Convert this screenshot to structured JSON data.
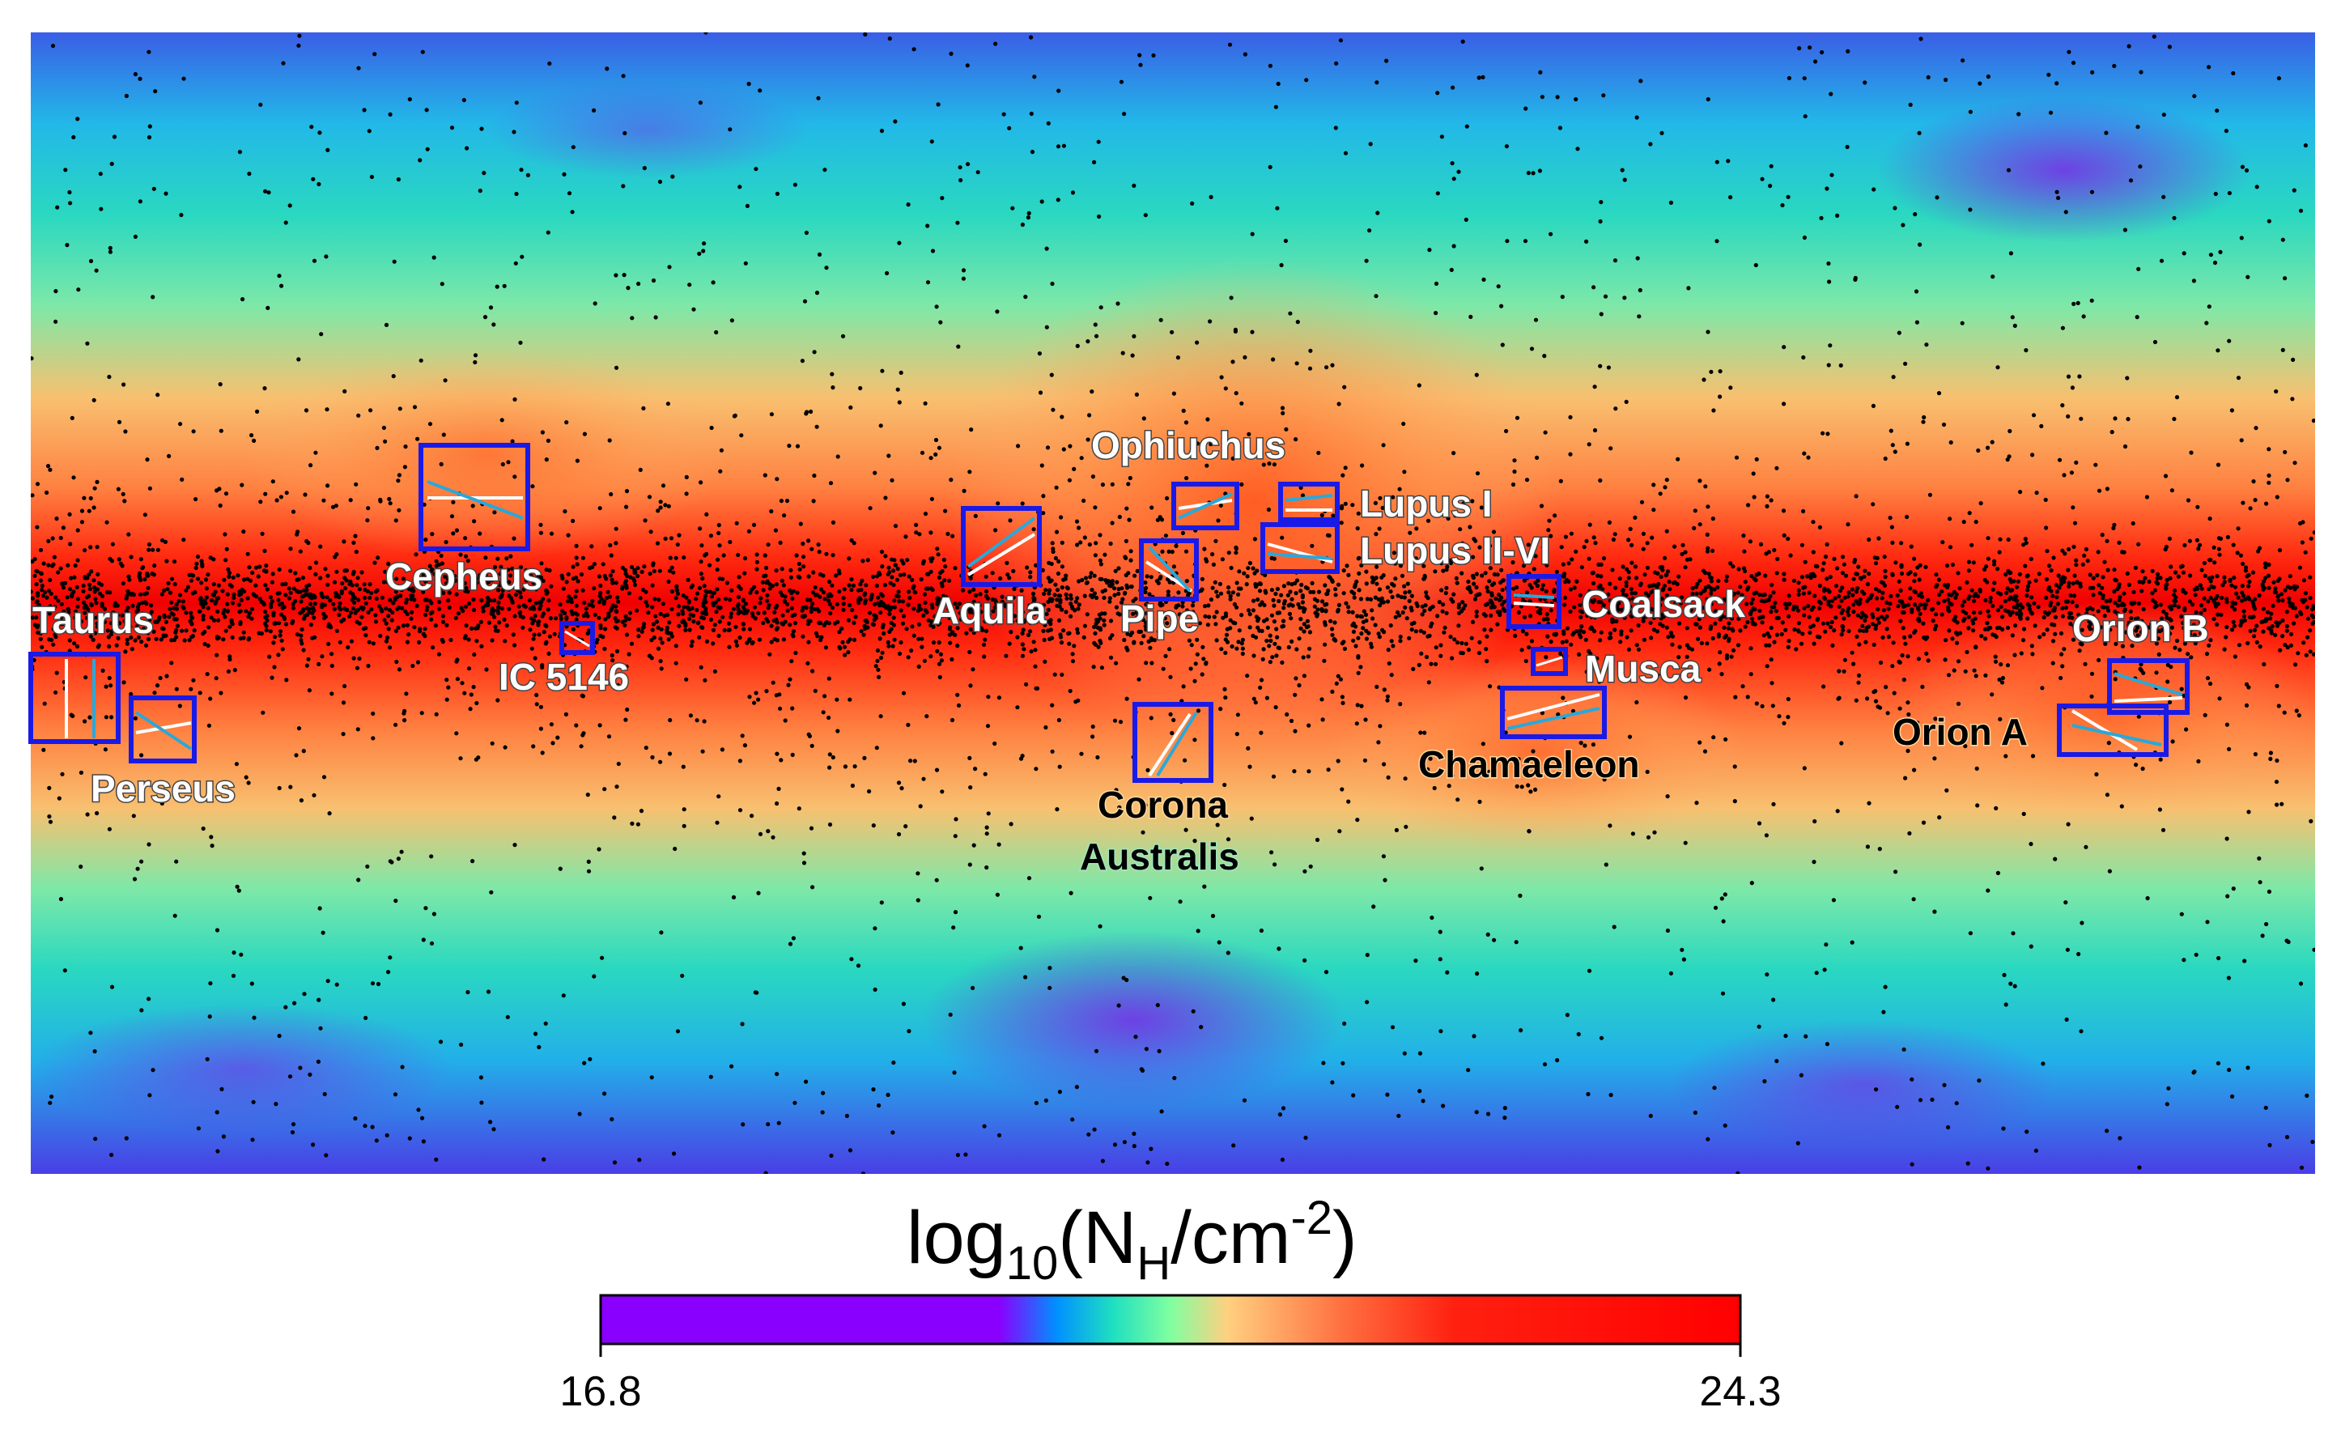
{
  "colorbar": {
    "title_prefix": "log",
    "title_base": "10",
    "title_paren_open": "(N",
    "title_sub": "H",
    "title_unit": "/cm",
    "title_sup": "-2",
    "title_paren_close": ")",
    "min_label": "16.8",
    "max_label": "24.3",
    "range": [
      16.8,
      24.3
    ]
  },
  "regions": [
    {
      "key": "taurus",
      "label": "Taurus",
      "color": "#ffffff"
    },
    {
      "key": "perseus",
      "label": "Perseus",
      "color": "#ffffff"
    },
    {
      "key": "cepheus",
      "label": "Cepheus",
      "color": "#ffffff"
    },
    {
      "key": "ic5146",
      "label": "IC 5146",
      "color": "#ffffff"
    },
    {
      "key": "aquila",
      "label": "Aquila",
      "color": "#ffffff"
    },
    {
      "key": "pipe",
      "label": "Pipe",
      "color": "#ffffff"
    },
    {
      "key": "ophiuchus",
      "label": "Ophiuchus",
      "color": "#ffffff"
    },
    {
      "key": "lupus-i",
      "label": "Lupus I",
      "color": "#ffffff"
    },
    {
      "key": "lupus-ii-vi",
      "label": "Lupus II-VI",
      "color": "#ffffff"
    },
    {
      "key": "coalsack",
      "label": "Coalsack",
      "color": "#ffffff"
    },
    {
      "key": "musca",
      "label": "Musca",
      "color": "#ffffff"
    },
    {
      "key": "chamaeleon",
      "label": "Chamaeleon",
      "color": "#000000"
    },
    {
      "key": "corona-australis-1",
      "label": "Corona",
      "color": "#000000"
    },
    {
      "key": "corona-australis-2",
      "label": "Australis",
      "color": "#000000"
    },
    {
      "key": "orion-b",
      "label": "Orion B",
      "color": "#ffffff"
    },
    {
      "key": "orion-a",
      "label": "Orion A",
      "color": "#000000"
    }
  ],
  "colors": {
    "box": "#1a1ae6",
    "vector_cyan": "#2aa8d8",
    "vector_white": "#ffffff",
    "sources": "#000000"
  }
}
